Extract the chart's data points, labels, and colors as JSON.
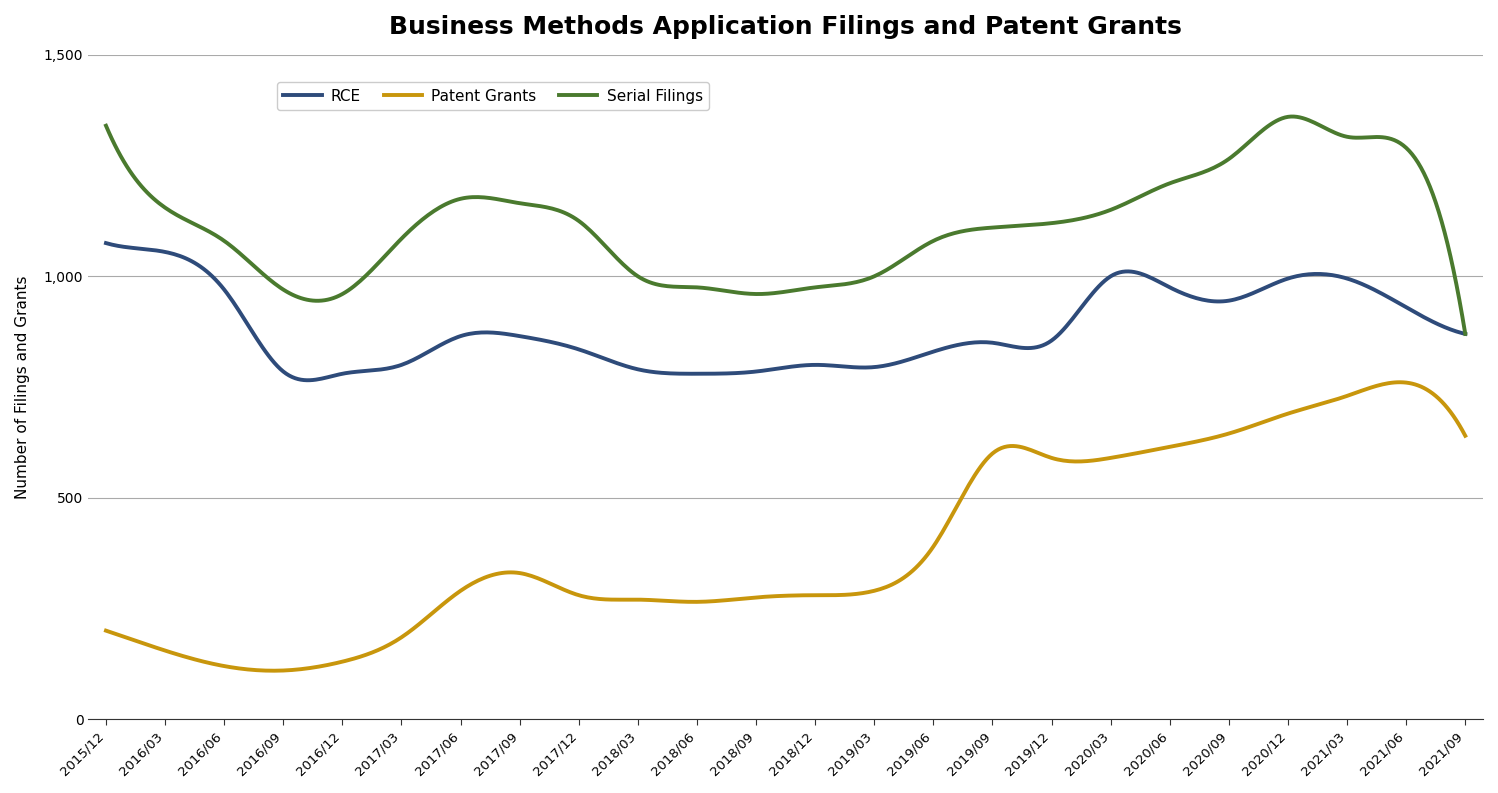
{
  "title": "Business Methods Application Filings and Patent Grants",
  "xlabel": "",
  "ylabel": "Number of Filings and Grants",
  "ylim": [
    0,
    1500
  ],
  "yticks": [
    0,
    500,
    1000,
    1500
  ],
  "background_color": "#ffffff",
  "grid_color": "#aaaaaa",
  "line_width": 2.8,
  "legend_labels": [
    "RCE",
    "Patent Grants",
    "Serial Filings"
  ],
  "colors": {
    "RCE": "#2E4B7A",
    "Patent Grants": "#C8960C",
    "Serial Filings": "#4A7A2E"
  },
  "x_labels": [
    "2015/12",
    "2016/03",
    "2016/06",
    "2016/09",
    "2016/12",
    "2017/03",
    "2017/06",
    "2017/09",
    "2017/12",
    "2018/03",
    "2018/06",
    "2018/09",
    "2018/12",
    "2019/03",
    "2019/06",
    "2019/09",
    "2019/12",
    "2020/03",
    "2020/06",
    "2020/09",
    "2020/12",
    "2021/03",
    "2021/06",
    "2021/09"
  ],
  "RCE": [
    1075,
    1055,
    970,
    785,
    780,
    800,
    865,
    865,
    835,
    790,
    780,
    785,
    800,
    795,
    830,
    850,
    855,
    1000,
    975,
    945,
    995,
    995,
    930,
    870
  ],
  "Patent_Grants": [
    200,
    155,
    120,
    110,
    130,
    185,
    290,
    330,
    280,
    270,
    265,
    275,
    280,
    290,
    390,
    600,
    590,
    590,
    615,
    645,
    690,
    730,
    760,
    640
  ],
  "Serial_Filings": [
    1340,
    1155,
    1080,
    970,
    960,
    1085,
    1175,
    1165,
    1125,
    1000,
    975,
    960,
    975,
    1000,
    1080,
    1110,
    1120,
    1150,
    1210,
    1265,
    1360,
    1315,
    1290,
    870
  ]
}
